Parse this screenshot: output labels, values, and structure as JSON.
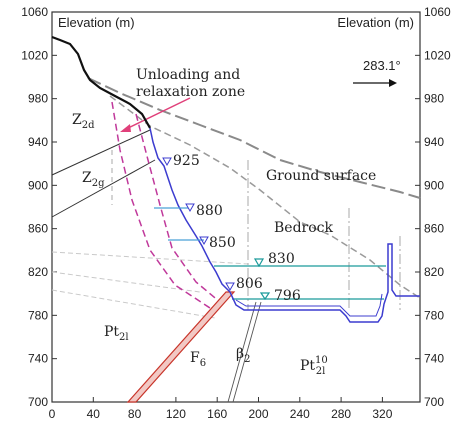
{
  "diagram": {
    "left_axis_title": "Elevation (m)",
    "right_axis_title": "Elevation (m)",
    "y_ticks": [
      "700",
      "740",
      "780",
      "820",
      "860",
      "900",
      "940",
      "980",
      "1020",
      "1060"
    ],
    "x_ticks": [
      "0",
      "40",
      "80",
      "120",
      "160",
      "200",
      "240",
      "280",
      "320"
    ],
    "bearing_label": "283.1°",
    "zone_label_line1": "Unloading and",
    "zone_label_line2": "relaxation zone",
    "ground_surface_label": "Ground surface",
    "bedrock_label": "Bedrock",
    "elevations": [
      "925",
      "880",
      "850",
      "830",
      "806",
      "796"
    ],
    "layer_z2d": "Z",
    "layer_z2d_sub": "2d",
    "layer_z2g": "Z",
    "layer_z2g_sub": "2g",
    "layer_pt2l": "Pt",
    "layer_pt2l_sub": "2l",
    "layer_pt10": "Pt",
    "layer_pt10_sub": "2l",
    "layer_pt10_sup": "10",
    "fault_f6": "F",
    "fault_f6_sub": "6",
    "fault_beta2": "β",
    "fault_beta2_sub": "2"
  },
  "colors": {
    "axis": "#333333",
    "terrain": "#111111",
    "ground_dash": "#8a8a8a",
    "relax_dash": "#c0399b",
    "excavation": "#3c3ccf",
    "water": "#1a9a9a",
    "fault_f6": "#c8352a",
    "pointer": "#e0407a"
  }
}
